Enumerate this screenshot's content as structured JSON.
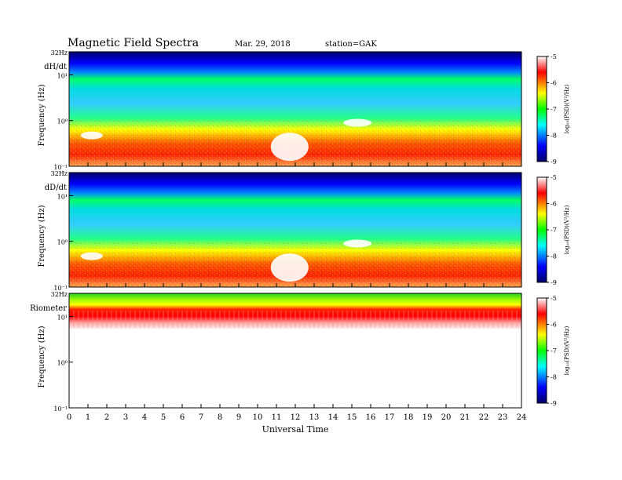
{
  "header": {
    "title": "Magnetic Field Spectra",
    "date": "Mar. 29, 2018",
    "station": "station=GAK"
  },
  "colors": {
    "scale": [
      "#ffffff",
      "#ff0000",
      "#ffff00",
      "#00ff00",
      "#00ffff",
      "#0000ff",
      "#000066"
    ]
  },
  "chart_data": [
    {
      "type": "heatmap",
      "panel_label": "dH/dt",
      "ylabel": "Frequency (Hz)",
      "yscale": "log",
      "ylim": [
        0.1,
        32
      ],
      "y_ticks": [
        "10⁻¹",
        "10⁰",
        "10¹",
        "32Hz"
      ],
      "x_ticks": [
        "0",
        "1",
        "2",
        "3",
        "4",
        "5",
        "6",
        "7",
        "8",
        "9",
        "10",
        "11",
        "12",
        "13",
        "14",
        "15",
        "16",
        "17",
        "18",
        "19",
        "20",
        "21",
        "22",
        "23",
        "24"
      ],
      "xlim": [
        0,
        24
      ],
      "colorbar": {
        "label": "log₁₀(PSD)(V²/Hz)",
        "range": [
          -9,
          -5
        ],
        "ticks": [
          "-5",
          "-6",
          "-7",
          "-8",
          "-9"
        ]
      }
    },
    {
      "type": "heatmap",
      "panel_label": "dD/dt",
      "ylabel": "Frequency (Hz)",
      "yscale": "log",
      "ylim": [
        0.1,
        32
      ],
      "y_ticks": [
        "10⁻¹",
        "10⁰",
        "10¹",
        "32Hz"
      ],
      "x_ticks": [
        "0",
        "1",
        "2",
        "3",
        "4",
        "5",
        "6",
        "7",
        "8",
        "9",
        "10",
        "11",
        "12",
        "13",
        "14",
        "15",
        "16",
        "17",
        "18",
        "19",
        "20",
        "21",
        "22",
        "23",
        "24"
      ],
      "xlim": [
        0,
        24
      ],
      "colorbar": {
        "label": "log₁₀(PSD)(V²/Hz)",
        "range": [
          -9,
          -5
        ],
        "ticks": [
          "-5",
          "-6",
          "-7",
          "-8",
          "-9"
        ]
      }
    },
    {
      "type": "heatmap",
      "panel_label": "Riometer",
      "ylabel": "Frequency (Hz)",
      "yscale": "log",
      "ylim": [
        0.1,
        32
      ],
      "y_ticks": [
        "10⁻¹",
        "10⁰",
        "10¹",
        "32Hz"
      ],
      "x_ticks": [
        "0",
        "1",
        "2",
        "3",
        "4",
        "5",
        "6",
        "7",
        "8",
        "9",
        "10",
        "11",
        "12",
        "13",
        "14",
        "15",
        "16",
        "17",
        "18",
        "19",
        "20",
        "21",
        "22",
        "23",
        "24"
      ],
      "xlim": [
        0,
        24
      ],
      "xlabel": "Universal Time",
      "colorbar": {
        "label": "log₁₀(PSD)(V²/Hz)",
        "range": [
          -9,
          -5
        ],
        "ticks": [
          "-5",
          "-6",
          "-7",
          "-8",
          "-9"
        ]
      }
    }
  ]
}
